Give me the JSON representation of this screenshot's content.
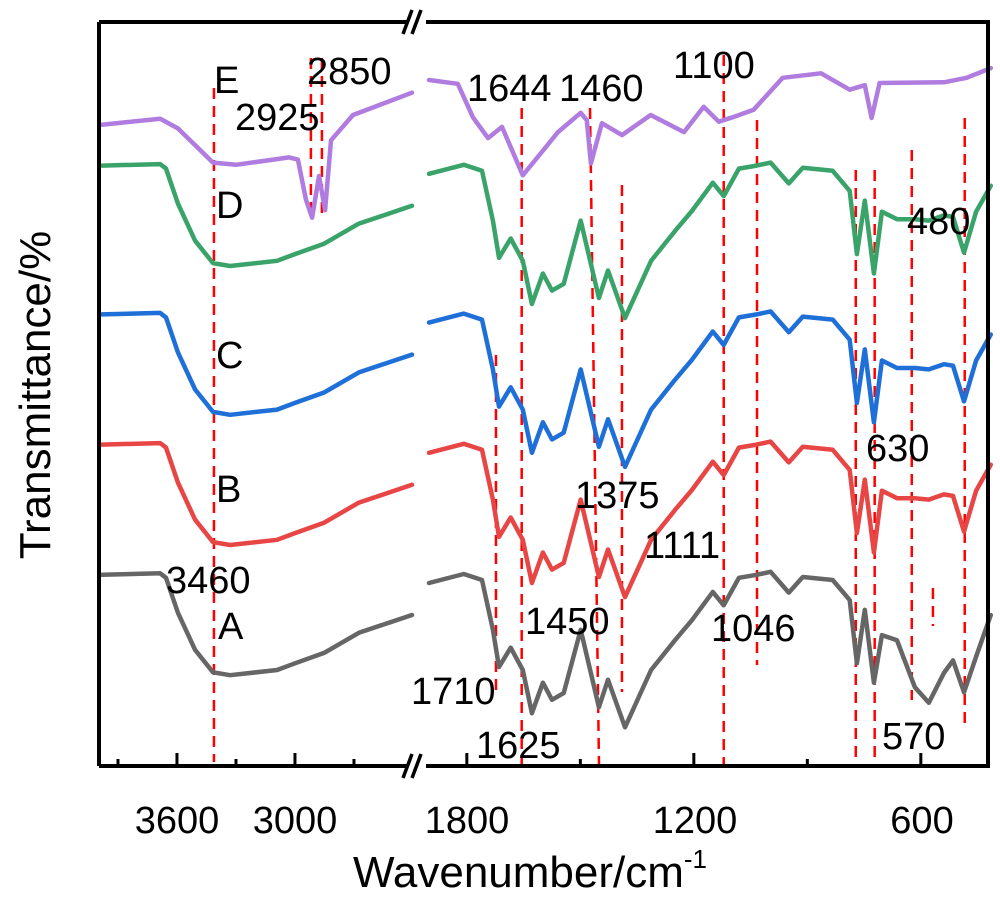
{
  "chart_data": {
    "type": "line",
    "title": "",
    "xlabel": "Wavenumber/cm",
    "xlabel_superscript": "-1",
    "ylabel": "Transmittance/%",
    "x_segments": [
      [
        4000,
        2400
      ],
      [
        1900,
        400
      ]
    ],
    "x_ticks_major": [
      {
        "value": 3600,
        "label": "3600"
      },
      {
        "value": 3000,
        "label": "3000"
      },
      {
        "value": 1800,
        "label": "1800"
      },
      {
        "value": 1200,
        "label": "1200"
      },
      {
        "value": 600,
        "label": "600"
      }
    ],
    "x_ticks_minor": [
      3900,
      3300,
      2700,
      1500,
      900
    ],
    "ylim": [
      0,
      100
    ],
    "y_ticks": "none",
    "grid": false,
    "x_common": {
      "left": [
        3981,
        3686,
        3656,
        3595,
        3508,
        3417,
        3330,
        3091,
        3000,
        2852,
        2675,
        2405
      ],
      "right": [
        1900,
        1808,
        1760,
        1731,
        1715,
        1684,
        1652,
        1628,
        1599,
        1575,
        1544,
        1499,
        1451,
        1427,
        1382,
        1313,
        1250,
        1205,
        1150,
        1121,
        1081,
        1034,
        997,
        949,
        912,
        833,
        788,
        769,
        748,
        724,
        703,
        663,
        616,
        579,
        539,
        515,
        486,
        454,
        415
      ]
    },
    "series": [
      {
        "name": "A",
        "color": "#666666",
        "left": [
          25.7,
          25.9,
          25.3,
          20.6,
          15.6,
          12.6,
          12.2,
          12.9,
          13.8,
          15.2,
          17.9,
          20.3
        ],
        "right": [
          24.6,
          25.8,
          25.0,
          18.3,
          13.3,
          15.9,
          12.9,
          7.1,
          11.2,
          8.9,
          9.8,
          18.3,
          7.9,
          11.6,
          5.2,
          12.9,
          16.9,
          19.6,
          23.4,
          21.6,
          25.3,
          25.7,
          26.1,
          23.3,
          25.4,
          25.0,
          22.3,
          13.8,
          21.0,
          11.2,
          17.6,
          16.9,
          10.6,
          8.5,
          12.5,
          14.2,
          9.9,
          14.7,
          20.3
        ]
      },
      {
        "name": "B",
        "color": "#e84545",
        "left": [
          43.2,
          43.4,
          42.8,
          38.1,
          33.1,
          30.1,
          29.7,
          30.4,
          31.3,
          32.7,
          35.4,
          37.8
        ],
        "right": [
          42.1,
          43.3,
          42.5,
          35.8,
          30.8,
          33.4,
          30.4,
          24.6,
          28.7,
          26.4,
          27.3,
          35.8,
          25.4,
          29.1,
          22.7,
          30.4,
          34.4,
          37.1,
          40.9,
          39.1,
          42.8,
          43.2,
          43.6,
          40.8,
          42.9,
          42.5,
          39.8,
          31.3,
          38.5,
          28.7,
          37.0,
          36.0,
          36.0,
          35.8,
          36.5,
          36.3,
          31.5,
          37.0,
          40.5
        ]
      },
      {
        "name": "C",
        "color": "#1f6fd9",
        "left": [
          60.7,
          60.9,
          60.3,
          55.6,
          50.6,
          47.6,
          47.2,
          47.9,
          48.8,
          50.2,
          52.9,
          55.3
        ],
        "right": [
          59.6,
          60.8,
          60.0,
          53.3,
          48.3,
          50.9,
          47.9,
          42.1,
          46.2,
          43.9,
          44.8,
          53.3,
          42.9,
          46.6,
          40.2,
          47.9,
          51.9,
          54.6,
          58.4,
          56.6,
          60.3,
          60.7,
          61.1,
          58.3,
          60.4,
          60.0,
          57.3,
          48.8,
          56.0,
          46.2,
          54.5,
          53.5,
          53.5,
          53.3,
          54.0,
          53.8,
          49.0,
          54.5,
          58.0
        ]
      },
      {
        "name": "D",
        "color": "#3aa36a",
        "left": [
          80.7,
          80.9,
          80.3,
          75.6,
          70.6,
          67.6,
          67.2,
          67.9,
          68.8,
          70.2,
          72.9,
          75.3
        ],
        "right": [
          79.6,
          80.8,
          80.0,
          73.3,
          68.3,
          70.9,
          67.9,
          62.1,
          66.2,
          63.9,
          64.8,
          73.3,
          62.9,
          66.6,
          60.2,
          67.9,
          71.9,
          74.6,
          78.4,
          76.6,
          80.3,
          80.7,
          81.1,
          78.3,
          80.4,
          80.0,
          77.3,
          68.8,
          76.0,
          66.2,
          74.5,
          73.5,
          73.5,
          73.3,
          74.0,
          73.8,
          69.0,
          74.5,
          78.0
        ]
      },
      {
        "name": "E",
        "color": "#b07ce0",
        "x_left": [
          3981,
          3686,
          3595,
          3417,
          3300,
          3030,
          2985,
          2944,
          2913,
          2878,
          2847,
          2817,
          2705,
          2405
        ],
        "left": [
          86.2,
          87.0,
          85.7,
          81.1,
          80.8,
          81.8,
          81.5,
          76.1,
          73.7,
          79.3,
          74.7,
          84.1,
          87.5,
          90.5
        ],
        "x_right": [
          1900,
          1824,
          1784,
          1744,
          1707,
          1652,
          1591,
          1559,
          1499,
          1483,
          1472,
          1443,
          1390,
          1314,
          1226,
          1174,
          1134,
          1097,
          1042,
          965,
          864,
          788,
          748,
          730,
          709,
          539,
          479,
          415
        ],
        "right": [
          92.2,
          91.7,
          87.2,
          84.4,
          85.9,
          79.4,
          83.2,
          85.2,
          87.8,
          86.8,
          81.0,
          86.4,
          84.8,
          87.5,
          85.2,
          88.6,
          86.6,
          87.2,
          88.2,
          92.5,
          93.1,
          90.9,
          91.5,
          87.1,
          91.8,
          91.9,
          92.5,
          93.8
        ]
      }
    ],
    "reference_lines_color": "#ff0000",
    "reference_lines": [
      3412,
      2919,
      2863,
      1723,
      1655,
      1463,
      1390,
      1121,
      1033,
      772,
      722,
      624,
      568,
      484
    ],
    "annotations": [
      "E",
      "2925",
      "2850",
      "1644",
      "1460",
      "1100",
      "D",
      "480",
      "C",
      "630",
      "B",
      "1375",
      "1111",
      "3460",
      "A",
      "1450",
      "1046",
      "1710",
      "1625",
      "570"
    ]
  }
}
